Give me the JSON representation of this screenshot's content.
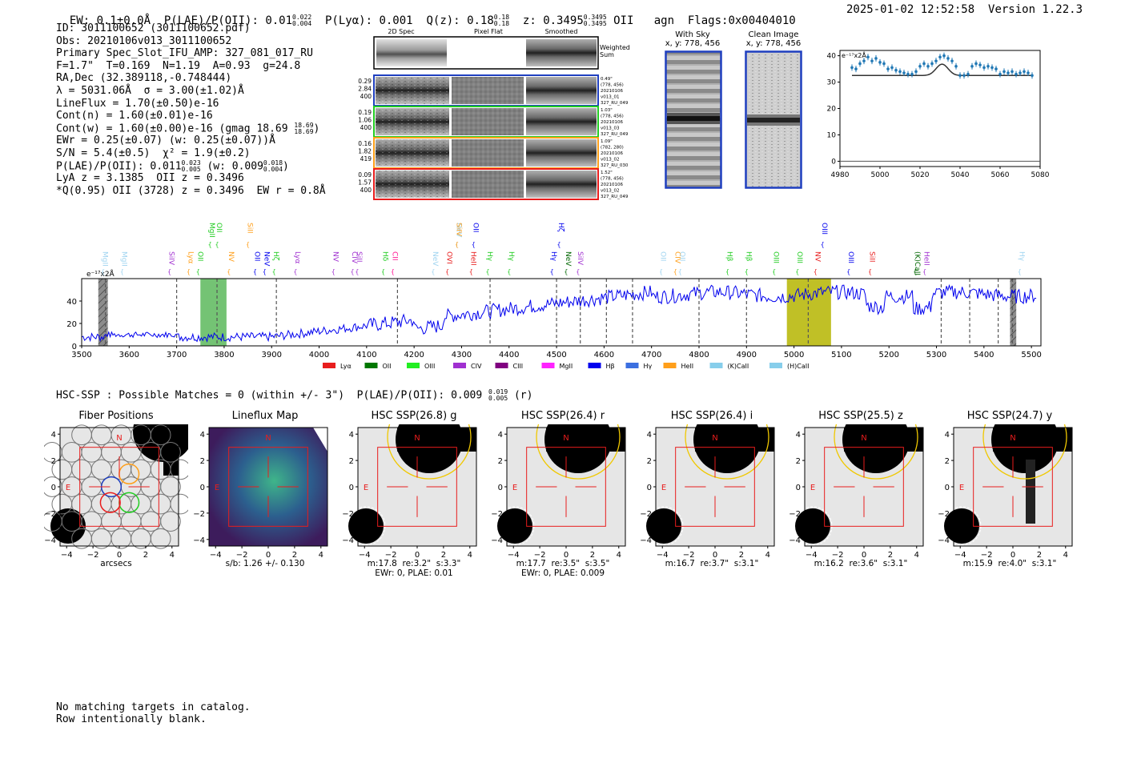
{
  "header": {
    "ew": "EW: 0.1±0.0Å",
    "plae_label": "P(LAE)/P(OII):",
    "plae_value": "0.01",
    "plae_hi": "0.022",
    "plae_lo": "0.004",
    "plya_label": "P(Lyα):",
    "plya_value": "0.001",
    "qz_label": "Q(z):",
    "qz_value": "0.18",
    "qz_hi": "0.18",
    "qz_lo": "0.18",
    "z_label": "z:",
    "z_value": "0.3495",
    "z_hi": "0.3495",
    "z_lo": "0.3495",
    "z_line": "OII",
    "agn": "agn",
    "flags": "Flags:0x00404010",
    "timestamp": "2025-01-02 12:52:58",
    "version": "Version 1.22.3"
  },
  "info": {
    "id": "ID: 3011100652 (3011100652.pdf)",
    "obs": "Obs: 20210106v013_3011100652",
    "primary": "Primary Spec_Slot_IFU_AMP: 327_081_017_RU",
    "fwhm": "F=1.7\"  T=0.169  N=1.19  A=0.93  g=24.8",
    "radec": "RA,Dec (32.389118,-0.748444)",
    "lambda": "λ = 5031.06Å  σ = 3.00(±1.02)Å",
    "lineflux": "LineFlux = 1.70(±0.50)e-16",
    "contn": "Cont(n) = 1.60(±0.01)e-16",
    "contw": "Cont(w) = 1.60(±0.00)e-16 (gmag 18.69",
    "contw_hi": "18.69",
    "contw_lo": "18.69",
    "contw_close": ")",
    "ewr": "EWr = 0.25(±0.07) (w: 0.25(±0.07))Å",
    "sn": "S/N = 5.4(±0.5)  χ² = 1.9(±0.2)",
    "plae": "P(LAE)/P(OII): 0.011",
    "plae_hi": "0.023",
    "plae_lo": "0.005",
    "plae_w": "(w: 0.009",
    "plae_w_hi": "0.018",
    "plae_w_lo": "0.004",
    "plae_close": ")",
    "lya": "LyA z = 3.1385  OII z = 0.3496",
    "q95": "*Q(0.95) OII (3728) z = 0.3496  EW r = 0.8Å"
  },
  "cutouts": {
    "headers": [
      "2D Spec",
      "Pixel Flat",
      "Smoothed"
    ],
    "weighted_sum": [
      "Weighted",
      "Sum"
    ],
    "rows": [
      {
        "left": [
          "0.29",
          "2.84",
          "400"
        ],
        "right": [
          "0.49\"",
          "(778, 456)",
          "20210106",
          "v013_01",
          "327_RU_049"
        ],
        "color": "#1f3fbf"
      },
      {
        "left": [
          "0.19",
          "1.06",
          "400"
        ],
        "right": [
          "1.03\"",
          "(778, 456)",
          "20210106",
          "v013_03",
          "327_RU_049"
        ],
        "color": "#22cc22"
      },
      {
        "left": [
          "0.16",
          "1.82",
          "419"
        ],
        "right": [
          "1.09\"",
          "(782, 280)",
          "20210106",
          "v013_02",
          "327_RU_030"
        ],
        "color": "#ff9f1a"
      },
      {
        "left": [
          "0.09",
          "1.57",
          "400"
        ],
        "right": [
          "1.52\"",
          "(778, 456)",
          "20210106",
          "v013_02",
          "327_RU_049"
        ],
        "color": "#e81d1d"
      }
    ]
  },
  "sky": {
    "with_sky": [
      "With Sky",
      "x, y: 778, 456"
    ],
    "clean": [
      "Clean Image",
      "x, y: 778, 456"
    ]
  },
  "zoom_chart": {
    "type": "scatter",
    "units": "e⁻¹⁷x2Å",
    "xlim": [
      4980,
      5080
    ],
    "ylim": [
      -2,
      42
    ],
    "xticks": [
      "4980",
      "5000",
      "5020",
      "5040",
      "5060",
      "5080"
    ],
    "yticks": [
      "0",
      "10",
      "20",
      "30",
      "40"
    ],
    "x": [
      4986,
      4988,
      4990,
      4992,
      4994,
      4996,
      4998,
      5000,
      5002,
      5004,
      5006,
      5008,
      5010,
      5012,
      5014,
      5016,
      5018,
      5020,
      5022,
      5024,
      5026,
      5028,
      5030,
      5032,
      5034,
      5036,
      5038,
      5040,
      5042,
      5044,
      5046,
      5048,
      5050,
      5052,
      5054,
      5056,
      5058,
      5060,
      5062,
      5064,
      5066,
      5068,
      5070,
      5072,
      5074,
      5076
    ],
    "y": [
      35.5,
      35,
      37,
      38,
      39.5,
      38,
      39,
      37.5,
      37,
      35,
      35.5,
      34.5,
      34,
      33.5,
      33,
      33,
      34,
      36,
      37,
      36,
      37,
      38,
      39.5,
      40,
      39,
      38,
      36,
      32.5,
      32.5,
      33,
      36,
      37,
      36.5,
      35.5,
      36,
      35.5,
      35,
      33,
      34,
      33.5,
      34,
      33,
      33.5,
      34,
      33.5,
      32.5
    ],
    "model_baseline": 32.5,
    "model_peak": 36.8,
    "model_center": 5031
  },
  "spectrum_chart": {
    "type": "line",
    "units": "e⁻¹⁷x2Å",
    "xlim": [
      3500,
      5520
    ],
    "ylim": [
      0,
      60
    ],
    "xticks": [
      "3500",
      "3600",
      "3700",
      "3800",
      "3900",
      "4000",
      "4100",
      "4200",
      "4300",
      "4400",
      "4500",
      "4600",
      "4700",
      "4800",
      "4900",
      "5000",
      "5100",
      "5200",
      "5300",
      "5400",
      "5500"
    ],
    "yticks": [
      "0",
      "20",
      "40"
    ],
    "line_color": "#0000ee",
    "shaded": [
      {
        "x0": 3535,
        "x1": 3555,
        "color": "#999999",
        "hatch": true
      },
      {
        "x0": 3750,
        "x1": 3805,
        "color": "#5cb85c",
        "hatch": false
      },
      {
        "x0": 4985,
        "x1": 5078,
        "color": "#b5b500",
        "hatch": false
      },
      {
        "x0": 5455,
        "x1": 5468,
        "color": "#999999",
        "hatch": true
      }
    ],
    "dashed_lines": [
      3550,
      3700,
      3785,
      3910,
      4165,
      4360,
      4500,
      4550,
      4605,
      4660,
      4800,
      4900,
      5030,
      5310,
      5370,
      5430,
      5460
    ],
    "line_labels": [
      {
        "text": "MgII",
        "x": 3545,
        "color": "#9fd4f0",
        "row": 1
      },
      {
        "text": "MgII",
        "x": 3585,
        "color": "#9fd4f0",
        "row": 1
      },
      {
        "text": "SiIV",
        "x": 3685,
        "color": "#a030d0",
        "row": 1
      },
      {
        "text": "Lyα",
        "x": 3725,
        "color": "#ff9f1a",
        "row": 1
      },
      {
        "text": "OII",
        "x": 3745,
        "color": "#22cc22",
        "row": 1
      },
      {
        "text": "MgII",
        "x": 3770,
        "color": "#22cc22",
        "row": 0
      },
      {
        "text": "OII",
        "x": 3785,
        "color": "#22cc22",
        "row": -1
      },
      {
        "text": "NV",
        "x": 3810,
        "color": "#ff9f1a",
        "row": 1
      },
      {
        "text": "SiII",
        "x": 3850,
        "color": "#ff9f1a",
        "row": -1
      },
      {
        "text": "OII",
        "x": 3865,
        "color": "#0000ee",
        "row": 1
      },
      {
        "text": "NeV",
        "x": 3885,
        "color": "#0000ee",
        "row": 1
      },
      {
        "text": "Hζ",
        "x": 3905,
        "color": "#22cc22",
        "row": 1
      },
      {
        "text": "Lyα",
        "x": 3950,
        "color": "#a030d0",
        "row": 1
      },
      {
        "text": "NV",
        "x": 4030,
        "color": "#a030d0",
        "row": 1
      },
      {
        "text": "SiII",
        "x": 4080,
        "color": "#a030d0",
        "row": 1
      },
      {
        "text": "CIV",
        "x": 4070,
        "color": "#a030d0",
        "row": 1
      },
      {
        "text": "Hδ",
        "x": 4135,
        "color": "#22cc22",
        "row": 1
      },
      {
        "text": "CII",
        "x": 4155,
        "color": "#ff1493",
        "row": 1
      },
      {
        "text": "NeV",
        "x": 4240,
        "color": "#9fd4f0",
        "row": 1
      },
      {
        "text": "OVI",
        "x": 4270,
        "color": "#e81d1d",
        "row": 1
      },
      {
        "text": "NeV",
        "x": 4290,
        "color": "#9fd4f0",
        "row": -1
      },
      {
        "text": "SiIV",
        "x": 4290,
        "color": "#ff9f1a",
        "row": -1
      },
      {
        "text": "OII",
        "x": 4325,
        "color": "#0000ee",
        "row": -1
      },
      {
        "text": "HeII",
        "x": 4320,
        "color": "#e81d1d",
        "row": 1
      },
      {
        "text": "Hγ",
        "x": 4355,
        "color": "#22cc22",
        "row": 1
      },
      {
        "text": "Hγ",
        "x": 4400,
        "color": "#22cc22",
        "row": 1
      },
      {
        "text": "Hγ",
        "x": 4490,
        "color": "#0000ee",
        "row": 1
      },
      {
        "text": "Hζ",
        "x": 4505,
        "color": "#0000ee",
        "row": -1
      },
      {
        "text": "NeV",
        "x": 4520,
        "color": "#006600",
        "row": 1
      },
      {
        "text": "SiIV",
        "x": 4545,
        "color": "#a030d0",
        "row": 1
      },
      {
        "text": "OII",
        "x": 4720,
        "color": "#9fd4f0",
        "row": 1
      },
      {
        "text": "CIV",
        "x": 4750,
        "color": "#ff9f1a",
        "row": 1
      },
      {
        "text": "OII",
        "x": 4760,
        "color": "#9fd4f0",
        "row": 1
      },
      {
        "text": "Hβ",
        "x": 4860,
        "color": "#22cc22",
        "row": 1
      },
      {
        "text": "Hβ",
        "x": 4900,
        "color": "#22cc22",
        "row": 1
      },
      {
        "text": "OIII",
        "x": 4958,
        "color": "#22cc22",
        "row": 1
      },
      {
        "text": "OIII",
        "x": 5007,
        "color": "#22cc22",
        "row": 1
      },
      {
        "text": "NV",
        "x": 5045,
        "color": "#e81d1d",
        "row": 1
      },
      {
        "text": "OIII",
        "x": 5060,
        "color": "#0000ee",
        "row": -1
      },
      {
        "text": "OIII",
        "x": 5115,
        "color": "#0000ee",
        "row": 1
      },
      {
        "text": "SiII",
        "x": 5160,
        "color": "#e81d1d",
        "row": 1
      },
      {
        "text": "(K)CaII",
        "x": 5255,
        "color": "#006600",
        "row": 1
      },
      {
        "text": "HeII",
        "x": 5275,
        "color": "#a030d0",
        "row": 1
      },
      {
        "text": "Hγ",
        "x": 5475,
        "color": "#9fd4f0",
        "row": 1
      }
    ],
    "legend": [
      {
        "label": "Lyα",
        "color": "#e81d1d"
      },
      {
        "label": "OII",
        "color": "#007700"
      },
      {
        "label": "OIII",
        "color": "#22ee22"
      },
      {
        "label": "CIV",
        "color": "#a030d0"
      },
      {
        "label": "CIII",
        "color": "#800080"
      },
      {
        "label": "MgII",
        "color": "#ff22ff"
      },
      {
        "label": "Hβ",
        "color": "#0000ee"
      },
      {
        "label": "Hγ",
        "color": "#3b6fe0"
      },
      {
        "label": "HeII",
        "color": "#ff9f1a"
      },
      {
        "label": "(K)CaII",
        "color": "#87ceeb"
      },
      {
        "label": "(H)CaII",
        "color": "#87ceeb"
      }
    ]
  },
  "hsc": {
    "summary": "HSC-SSP : Possible Matches = 0 (within +/- 3\")  P(LAE)/P(OII): 0.009",
    "summary_hi": "0.019",
    "summary_lo": "0.005",
    "summary_tail": "(r)"
  },
  "panels": [
    {
      "title": "Fiber Positions",
      "caption": [
        "arcsecs"
      ],
      "kind": "fibers"
    },
    {
      "title": "Lineflux Map",
      "caption": [
        "s/b: 1.26 +/- 0.130"
      ],
      "kind": "lineflux"
    },
    {
      "title": "HSC SSP(26.8) g",
      "caption": [
        "m:17.8  re:3.2\"  s:3.3\"",
        "EWr: 0, PLAE: 0.01"
      ],
      "kind": "hsc"
    },
    {
      "title": "HSC SSP(26.4) r",
      "caption": [
        "m:17.7  re:3.5\"  s:3.5\"",
        "EWr: 0, PLAE: 0.009"
      ],
      "kind": "hsc"
    },
    {
      "title": "HSC SSP(26.4) i",
      "caption": [
        "m:16.7  re:3.7\"  s:3.1\""
      ],
      "kind": "hsc"
    },
    {
      "title": "HSC SSP(25.5) z",
      "caption": [
        "m:16.2  re:3.6\"  s:3.1\""
      ],
      "kind": "hsc"
    },
    {
      "title": "HSC SSP(24.7) y",
      "caption": [
        "m:15.9  re:4.0\"  s:3.1\""
      ],
      "kind": "hsc"
    }
  ],
  "panel_axes": {
    "ticks": [
      "−4",
      "−2",
      "0",
      "2",
      "4"
    ],
    "north": "N",
    "east": "E"
  },
  "footer": {
    "line1": "No matching targets in catalog.",
    "line2": "Row intentionally blank."
  }
}
